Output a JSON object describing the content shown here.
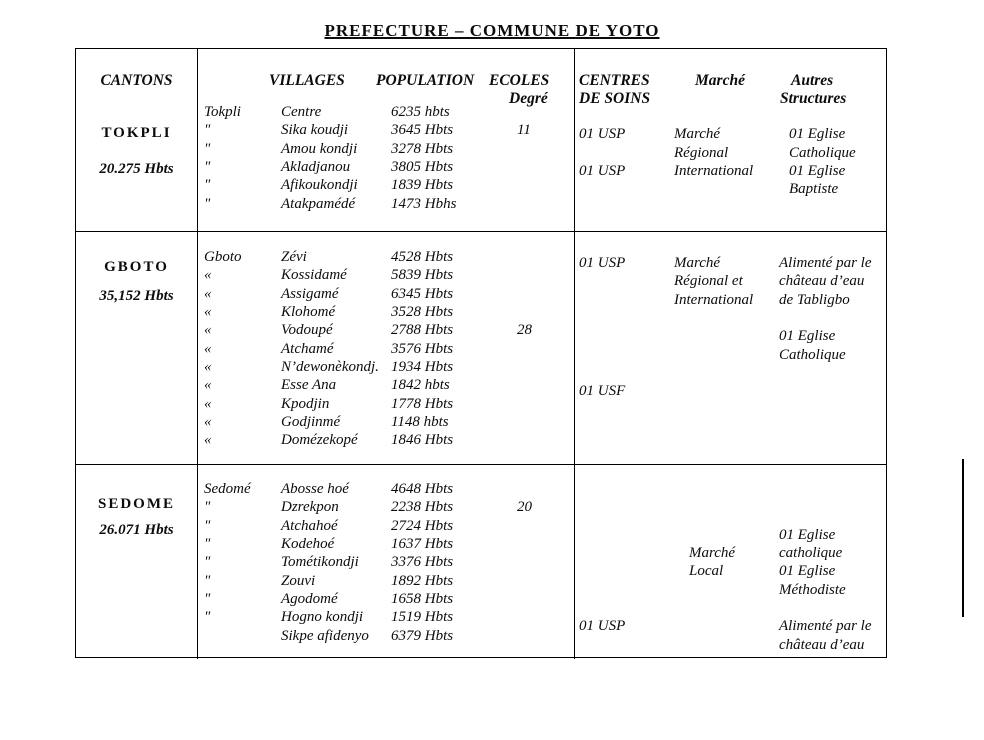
{
  "title": "PREFECTURE – COMMUNE DE YOTO",
  "headers": {
    "cantons": "CANTONS",
    "villages": "VILLAGES",
    "population": "POPULATION",
    "ecoles": "ECOLES",
    "degre": "Degré",
    "centres": "CENTRES",
    "de_soins": "DE SOINS",
    "marche": "Marché",
    "autres": "Autres",
    "structures": "Structures"
  },
  "rows": [
    {
      "canton": "TOKPLI",
      "canton_pop": "20.275 Hbts",
      "villages": [
        {
          "origin": "Tokpli",
          "name": "Centre",
          "pop": "6235 hbts",
          "ecole": ""
        },
        {
          "origin": "\"",
          "name": "Sika koudji",
          "pop": "3645 Hbts",
          "ecole": "11"
        },
        {
          "origin": "\"",
          "name": "Amou kondji",
          "pop": "3278 Hbts",
          "ecole": ""
        },
        {
          "origin": "\"",
          "name": "Akladjanou",
          "pop": "3805 Hbts",
          "ecole": ""
        },
        {
          "origin": "\"",
          "name": "Afikoukondji",
          "pop": "1839 Hbts",
          "ecole": ""
        },
        {
          "origin": "\"",
          "name": "Atakpamédé",
          "pop": "1473 Hbhs",
          "ecole": ""
        }
      ],
      "soins": [
        "",
        "01 USP",
        "",
        "01 USP"
      ],
      "marche": [
        "",
        "Marché",
        "Régional",
        "International"
      ],
      "autres": [
        "",
        "01 Eglise",
        "Catholique",
        "01 Eglise",
        "Baptiste"
      ]
    },
    {
      "canton": "GBOTO",
      "canton_pop": "35,152 Hbts",
      "villages": [
        {
          "origin": "Gboto",
          "name": "Zévi",
          "pop": "4528 Hbts",
          "ecole": ""
        },
        {
          "origin": "«",
          "name": "Kossidamé",
          "pop": "5839 Hbts",
          "ecole": ""
        },
        {
          "origin": "«",
          "name": "Assigamé",
          "pop": "6345 Hbts",
          "ecole": ""
        },
        {
          "origin": "«",
          "name": "Klohomé",
          "pop": "3528 Hbts",
          "ecole": ""
        },
        {
          "origin": "«",
          "name": "Vodoupé",
          "pop": "2788 Hbts",
          "ecole": "28"
        },
        {
          "origin": "«",
          "name": "Atchamé",
          "pop": "3576 Hbts",
          "ecole": ""
        },
        {
          "origin": "«",
          "name": "N’dewonèkondj.",
          "pop": "1934 Hbts",
          "ecole": ""
        },
        {
          "origin": "«",
          "name": "Esse Ana",
          "pop": "1842 hbts",
          "ecole": ""
        },
        {
          "origin": "«",
          "name": "Kpodjin",
          "pop": "1778 Hbts",
          "ecole": ""
        },
        {
          "origin": "«",
          "name": "Godjinmé",
          "pop": "1148 hbts",
          "ecole": ""
        },
        {
          "origin": "«",
          "name": "Domézekopé",
          "pop": "1846 Hbts",
          "ecole": ""
        }
      ],
      "soins": [
        "01 USP",
        "",
        "",
        "",
        "",
        "",
        "",
        "01 USF"
      ],
      "marche": [
        "Marché",
        "Régional et",
        "International"
      ],
      "autres": [
        "Alimenté par le",
        "château d’eau",
        "de Tabligbo",
        "",
        "01 Eglise",
        "Catholique"
      ]
    },
    {
      "canton": "SEDOME",
      "canton_pop": "26.071 Hbts",
      "villages": [
        {
          "origin": "Sedomé",
          "name": "Abosse hoé",
          "pop": "4648 Hbts",
          "ecole": ""
        },
        {
          "origin": "\"",
          "name": "Dzrekpon",
          "pop": "2238 Hbts",
          "ecole": "20"
        },
        {
          "origin": "\"",
          "name": "Atchahoé",
          "pop": "2724 Hbts",
          "ecole": ""
        },
        {
          "origin": "\"",
          "name": "Kodehoé",
          "pop": "1637 Hbts",
          "ecole": ""
        },
        {
          "origin": "\"",
          "name": "Tométikondji",
          "pop": "3376 Hbts",
          "ecole": ""
        },
        {
          "origin": "\"",
          "name": "Zouvi",
          "pop": "1892 Hbts",
          "ecole": ""
        },
        {
          "origin": "\"",
          "name": "Agodomé",
          "pop": "1658 Hbts",
          "ecole": ""
        },
        {
          "origin": "\"",
          "name": "Hogno kondji",
          "pop": "1519 Hbts",
          "ecole": ""
        },
        {
          "origin": "",
          "name": "Sikpe afidenyo",
          "pop": "6379 Hbts",
          "ecole": ""
        }
      ],
      "soins": [
        "",
        "",
        "",
        "",
        "",
        "",
        "",
        "01 USP"
      ],
      "marche": [
        "",
        "",
        "",
        "Marché",
        "Local"
      ],
      "autres": [
        "",
        "",
        "01 Eglise",
        "catholique",
        "01 Eglise",
        "Méthodiste",
        "",
        "Alimenté par le",
        "château d’eau"
      ]
    }
  ]
}
